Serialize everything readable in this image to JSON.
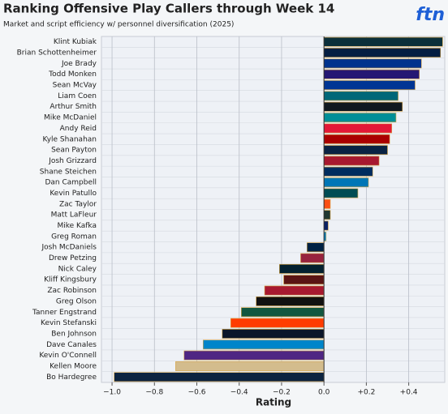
{
  "chart_data": {
    "type": "hbar",
    "title": "Ranking Offensive Play Callers through Week 14",
    "subtitle": "Market and script efficiency w/ personnel diversification (2025)",
    "brand": "ftn",
    "x_label": "Rating",
    "categories": [
      "Klint Kubiak",
      "Brian Schottenheimer",
      "Joe Brady",
      "Todd Monken",
      "Sean McVay",
      "Liam Coen",
      "Arthur Smith",
      "Mike McDaniel",
      "Andy Reid",
      "Kyle Shanahan",
      "Sean Payton",
      "Josh Grizzard",
      "Shane Steichen",
      "Dan Campbell",
      "Kevin Patullo",
      "Zac Taylor",
      "Matt LaFleur",
      "Mike Kafka",
      "Greg Roman",
      "Josh McDaniels",
      "Drew Petzing",
      "Nick Caley",
      "Kliff Kingsbury",
      "Zac Robinson",
      "Greg Olson",
      "Tanner Engstrand",
      "Kevin Stefanski",
      "Ben Johnson",
      "Dave Canales",
      "Kevin O'Connell",
      "Kellen Moore",
      "Bo Hardegree"
    ],
    "values": [
      0.56,
      0.55,
      0.46,
      0.45,
      0.43,
      0.35,
      0.37,
      0.34,
      0.32,
      0.31,
      0.3,
      0.26,
      0.23,
      0.21,
      0.16,
      0.03,
      0.03,
      0.02,
      0.01,
      -0.08,
      -0.11,
      -0.21,
      -0.19,
      -0.28,
      -0.32,
      -0.39,
      -0.44,
      -0.48,
      -0.57,
      -0.66,
      -0.7,
      -0.99
    ],
    "colors": [
      "#0b2f3a",
      "#041e42",
      "#00338d",
      "#241773",
      "#003594",
      "#006778",
      "#101820",
      "#008e97",
      "#e31837",
      "#aa0000",
      "#0a2343",
      "#a71930",
      "#002c5f",
      "#0076b6",
      "#004c54",
      "#fb4f14",
      "#203731",
      "#0b2265",
      "#0080c6",
      "#002244",
      "#97233f",
      "#03202f",
      "#5a1414",
      "#a71930",
      "#111111",
      "#125740",
      "#ff3c00",
      "#0b162a",
      "#0085ca",
      "#4f2683",
      "#d3bc8d",
      "#0c2340"
    ],
    "xlim": [
      -1.05,
      0.57
    ],
    "xticks": [
      {
        "value": -1.0,
        "label": "−1.0"
      },
      {
        "value": -0.8,
        "label": "−0.8"
      },
      {
        "value": -0.6,
        "label": "−0.6"
      },
      {
        "value": -0.4,
        "label": "−0.4"
      },
      {
        "value": -0.2,
        "label": "−0.2"
      },
      {
        "value": 0,
        "label": "0.0"
      },
      {
        "value": 0.2,
        "label": "+0.2"
      },
      {
        "value": 0.4,
        "label": "+0.4"
      }
    ],
    "grid": true
  }
}
